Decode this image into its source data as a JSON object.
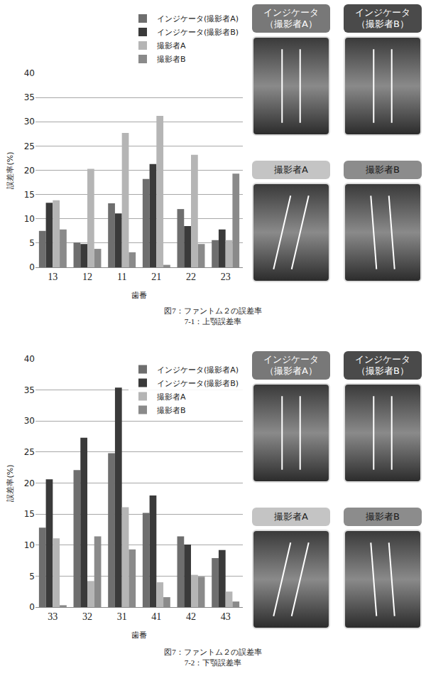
{
  "chart_data": [
    {
      "type": "bar",
      "title": "図7：ファントム２の誤差率",
      "subtitle": "7-1：上顎誤差率",
      "x_label": "歯番",
      "y_label": "誤差率(%)",
      "categories": [
        "13",
        "12",
        "11",
        "21",
        "22",
        "23"
      ],
      "series": [
        {
          "name": "インジケータ(撮影者A)",
          "color": "#6e6e6e",
          "values": [
            7.5,
            5.1,
            13.2,
            18.2,
            12.0,
            5.6
          ]
        },
        {
          "name": "インジケータ(撮影者B)",
          "color": "#3a3a3a",
          "values": [
            13.3,
            4.8,
            11.1,
            21.3,
            8.5,
            7.8
          ]
        },
        {
          "name": "撮影者A",
          "color": "#b5b5b5",
          "values": [
            13.8,
            20.3,
            27.7,
            31.2,
            23.2,
            5.6
          ]
        },
        {
          "name": "撮影者B",
          "color": "#8a8a8a",
          "values": [
            7.8,
            3.8,
            3.1,
            0.5,
            4.8,
            19.3
          ]
        }
      ],
      "ylim": [
        0,
        40
      ],
      "yticks": [
        0,
        5,
        10,
        15,
        20,
        25,
        30,
        35,
        40
      ],
      "grid": true,
      "legend": "above",
      "annotations": [
        "インジケータ（撮影者A）",
        "インジケータ（撮影者B）",
        "撮影者A",
        "撮影者B"
      ]
    },
    {
      "type": "bar",
      "title": "図7：ファントム２の誤差率",
      "subtitle": "7-2：下顎誤差率",
      "x_label": "歯番",
      "y_label": "誤差率(%)",
      "categories": [
        "33",
        "32",
        "31",
        "41",
        "42",
        "43"
      ],
      "series": [
        {
          "name": "インジケータ(撮影者A)",
          "color": "#6e6e6e",
          "values": [
            12.8,
            22.1,
            24.8,
            15.2,
            11.4,
            7.9
          ]
        },
        {
          "name": "インジケータ(撮影者B)",
          "color": "#3a3a3a",
          "values": [
            20.6,
            27.3,
            35.4,
            18.0,
            10.1,
            9.2
          ]
        },
        {
          "name": "撮影者A",
          "color": "#b5b5b5",
          "values": [
            11.1,
            4.2,
            16.1,
            4.0,
            5.2,
            2.5
          ]
        },
        {
          "name": "撮影者B",
          "color": "#8a8a8a",
          "values": [
            0.3,
            11.4,
            9.3,
            1.6,
            4.9,
            0.9
          ]
        }
      ],
      "ylim": [
        0,
        40
      ],
      "yticks": [
        0,
        5,
        10,
        15,
        20,
        25,
        30,
        35,
        40
      ],
      "grid": true,
      "legend": "top right",
      "annotations": [
        "インジケータ（撮影者A）",
        "インジケータ（撮影者B）",
        "撮影者A",
        "撮影者B"
      ]
    }
  ]
}
